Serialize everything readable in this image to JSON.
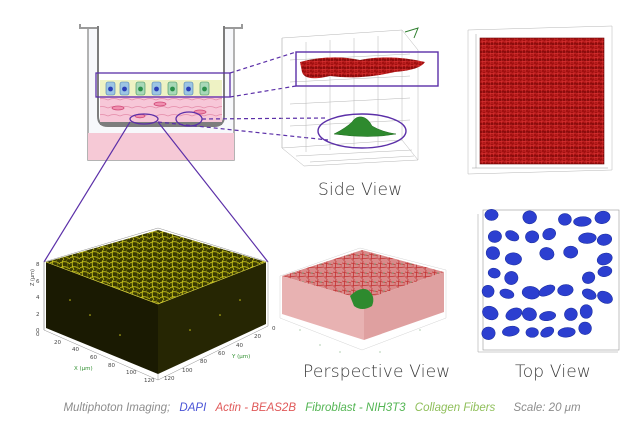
{
  "views": {
    "side": "Side View",
    "perspective": "Perspective View",
    "top": "Top View"
  },
  "caption": {
    "intro": "Multiphoton Imaging;",
    "dapi": "DAPI",
    "actin": "Actin - BEAS2B",
    "fibroblast": "Fibroblast - NIH3T3",
    "collagen": "Collagen Fibers",
    "scale": "Scale: 20 μm"
  },
  "colors": {
    "dapi": "#4a54d6",
    "actin": "#e05a5a",
    "fibroblast": "#53b553",
    "collagen": "#8fbf5a",
    "outline": "#5b2fa8",
    "neutral": "#8d8d8d"
  },
  "collagen_axes": {
    "z_unit": "Z (μm)",
    "y_unit": "Y (μm)",
    "x_unit": "X (μm)",
    "x_ticks": [
      "0",
      "20",
      "40",
      "60",
      "80",
      "100",
      "120"
    ],
    "y_ticks": [
      "0",
      "20",
      "40",
      "60",
      "80",
      "100",
      "120"
    ],
    "z_ticks": [
      "0",
      "2",
      "4",
      "6",
      "8"
    ]
  }
}
